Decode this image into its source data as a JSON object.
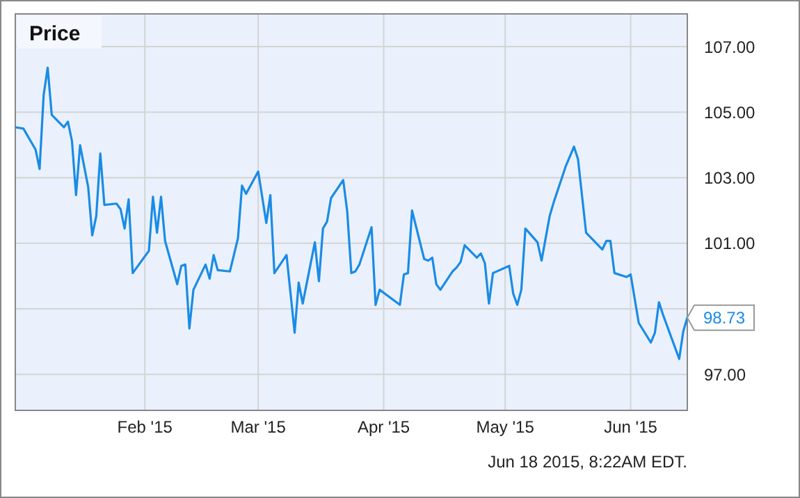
{
  "chart_data": {
    "type": "line",
    "title": "Price",
    "annotations": [
      {
        "text": "98.73",
        "x": "2015-06-15",
        "y": 98.73
      },
      "Jun 18 2015, 8:22AM EDT."
    ],
    "x": [
      "2014-12-31",
      "2015-01-02",
      "2015-01-05",
      "2015-01-06",
      "2015-01-07",
      "2015-01-08",
      "2015-01-09",
      "2015-01-12",
      "2015-01-13",
      "2015-01-14",
      "2015-01-15",
      "2015-01-16",
      "2015-01-18",
      "2015-01-19",
      "2015-01-20",
      "2015-01-21",
      "2015-01-22",
      "2015-01-25",
      "2015-01-26",
      "2015-01-27",
      "2015-01-28",
      "2015-01-29",
      "2015-02-02",
      "2015-02-03",
      "2015-02-04",
      "2015-02-05",
      "2015-02-06",
      "2015-02-09",
      "2015-02-10",
      "2015-02-11",
      "2015-02-12",
      "2015-02-13",
      "2015-02-16",
      "2015-02-17",
      "2015-02-18",
      "2015-02-19",
      "2015-02-22",
      "2015-02-24",
      "2015-02-25",
      "2015-02-26",
      "2015-03-01",
      "2015-03-03",
      "2015-03-04",
      "2015-03-05",
      "2015-03-08",
      "2015-03-10",
      "2015-03-11",
      "2015-03-12",
      "2015-03-15",
      "2015-03-16",
      "2015-03-17",
      "2015-03-18",
      "2015-03-19",
      "2015-03-22",
      "2015-03-23",
      "2015-03-24",
      "2015-03-25",
      "2015-03-26",
      "2015-03-29",
      "2015-03-30",
      "2015-03-31",
      "2015-04-05",
      "2015-04-06",
      "2015-04-07",
      "2015-04-08",
      "2015-04-11",
      "2015-04-12",
      "2015-04-13",
      "2015-04-14",
      "2015-04-15",
      "2015-04-18",
      "2015-04-19",
      "2015-04-20",
      "2015-04-21",
      "2015-04-24",
      "2015-04-25",
      "2015-04-26",
      "2015-04-27",
      "2015-04-28",
      "2015-05-02",
      "2015-05-03",
      "2015-05-04",
      "2015-05-05",
      "2015-05-06",
      "2015-05-09",
      "2015-05-10",
      "2015-05-12",
      "2015-05-13",
      "2015-05-16",
      "2015-05-17",
      "2015-05-18",
      "2015-05-19",
      "2015-05-21",
      "2015-05-25",
      "2015-05-26",
      "2015-05-27",
      "2015-05-28",
      "2015-05-31",
      "2015-06-01",
      "2015-06-03",
      "2015-06-06",
      "2015-06-07",
      "2015-06-08",
      "2015-06-09",
      "2015-06-13",
      "2015-06-14",
      "2015-06-15"
    ],
    "series": [
      {
        "color": "#1a8be6",
        "values": [
          104.54,
          104.5,
          103.86,
          103.27,
          105.52,
          106.36,
          104.92,
          104.54,
          104.71,
          104.12,
          102.47,
          103.99,
          102.72,
          101.24,
          101.83,
          103.74,
          102.17,
          102.21,
          102.04,
          101.45,
          102.34,
          100.09,
          100.77,
          102.42,
          101.32,
          102.42,
          101.07,
          99.75,
          100.31,
          100.35,
          98.4,
          99.58,
          100.35,
          99.92,
          100.64,
          100.18,
          100.14,
          101.15,
          102.76,
          102.51,
          103.19,
          101.62,
          102.47,
          100.09,
          100.64,
          98.27,
          99.8,
          99.16,
          101.03,
          99.84,
          101.45,
          101.66,
          102.38,
          102.93,
          101.96,
          100.09,
          100.14,
          100.35,
          101.49,
          99.12,
          99.58,
          99.12,
          100.05,
          100.09,
          102.0,
          100.52,
          100.47,
          100.56,
          99.75,
          99.58,
          100.14,
          100.26,
          100.43,
          100.94,
          100.56,
          100.69,
          100.39,
          99.16,
          100.09,
          100.31,
          99.46,
          99.12,
          99.58,
          101.45,
          101.03,
          100.47,
          101.83,
          102.25,
          103.36,
          103.65,
          103.95,
          103.57,
          101.32,
          100.81,
          101.07,
          101.07,
          100.09,
          99.97,
          100.05,
          98.57,
          97.97,
          98.27,
          99.2,
          98.82,
          97.47,
          98.31,
          98.73
        ]
      }
    ],
    "xlim": [
      "2014-12-31",
      "2015-06-15"
    ],
    "xticks": [
      {
        "value": "2015-02-01",
        "label": "Feb '15"
      },
      {
        "value": "2015-03-01",
        "label": "Mar '15"
      },
      {
        "value": "2015-04-01",
        "label": "Apr '15"
      },
      {
        "value": "2015-05-01",
        "label": "May '15"
      },
      {
        "value": "2015-06-01",
        "label": "Jun '15"
      }
    ],
    "ylim": [
      95.9,
      108
    ],
    "yticks": [
      {
        "value": 97,
        "label": "97.00"
      },
      {
        "value": 99,
        "label": null
      },
      {
        "value": 101,
        "label": "101.00"
      },
      {
        "value": 103,
        "label": "103.00"
      },
      {
        "value": 105,
        "label": "105.00"
      },
      {
        "value": 107,
        "label": "107.00"
      }
    ],
    "grid": true,
    "marker": "none",
    "line_style": "solid"
  }
}
